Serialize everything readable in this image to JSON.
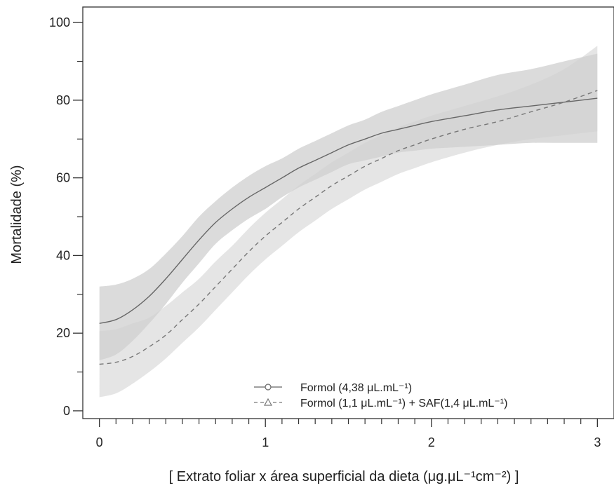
{
  "chart_data": {
    "type": "line",
    "xlabel": "[ Extrato foliar x área superficial da dieta (μg.μL⁻¹cm⁻²) ]",
    "ylabel": "Mortalidade (%)",
    "xlim": [
      -0.1,
      3.1
    ],
    "ylim": [
      -2,
      104
    ],
    "x_ticks": [
      0,
      1,
      2,
      3
    ],
    "y_ticks": [
      0,
      20,
      40,
      60,
      80,
      100
    ],
    "x_minor_ticks": [
      0.1,
      0.2,
      0.3,
      0.4,
      0.5,
      0.6,
      0.7,
      0.8,
      0.9,
      1.1,
      1.2,
      1.3,
      1.4,
      1.5,
      1.6,
      1.7,
      1.8,
      1.9,
      2.1,
      2.2,
      2.3,
      2.4,
      2.5,
      2.6,
      2.7,
      2.8,
      2.9
    ],
    "y_minor_ticks": [
      10,
      30,
      50,
      70,
      90
    ],
    "grid": false,
    "legend_position": "bottom-right",
    "series": [
      {
        "name": "Formol (4,38 μL.mL⁻¹)",
        "marker": "circle",
        "line_style": "solid",
        "color": "#666666",
        "band_color": "#bdbdbd",
        "x": [
          0,
          0.1,
          0.2,
          0.3,
          0.4,
          0.5,
          0.6,
          0.7,
          0.8,
          0.9,
          1.0,
          1.1,
          1.2,
          1.3,
          1.4,
          1.5,
          1.6,
          1.7,
          1.8,
          1.9,
          2.0,
          2.2,
          2.4,
          2.6,
          2.8,
          3.0
        ],
        "y": [
          22.5,
          23.5,
          26,
          29.5,
          34,
          39,
          44,
          48.5,
          52,
          55,
          57.5,
          60,
          62.5,
          64.5,
          66.5,
          68.5,
          70,
          71.5,
          72.5,
          73.5,
          74.5,
          76,
          77.5,
          78.5,
          79.5,
          80.5
        ],
        "lower": [
          13,
          14.5,
          18,
          22.5,
          27.5,
          33,
          38,
          43,
          46.5,
          49.5,
          52,
          55,
          57.5,
          59.5,
          61.5,
          63.5,
          64.5,
          65.5,
          66.5,
          67,
          67.5,
          68,
          68.5,
          69,
          69,
          69
        ],
        "upper": [
          32,
          32.5,
          34,
          36.5,
          40.5,
          45,
          50,
          54,
          57.5,
          60.5,
          63,
          65,
          67.5,
          69.5,
          71.5,
          73.5,
          75,
          77,
          78.5,
          80,
          81.5,
          84,
          86.5,
          88,
          90,
          92
        ]
      },
      {
        "name": "Formol (1,1 μL.mL⁻¹) + SAF(1,4 μL.mL⁻¹)",
        "marker": "triangle",
        "line_style": "dashed",
        "color": "#777777",
        "band_color": "#cfcfcf",
        "x": [
          0,
          0.1,
          0.2,
          0.3,
          0.4,
          0.5,
          0.6,
          0.7,
          0.8,
          0.9,
          1.0,
          1.1,
          1.2,
          1.3,
          1.4,
          1.5,
          1.6,
          1.7,
          1.8,
          1.9,
          2.0,
          2.2,
          2.4,
          2.6,
          2.8,
          3.0
        ],
        "y": [
          12,
          12.5,
          14,
          16.5,
          19.5,
          23.5,
          27.5,
          32,
          36.5,
          41,
          45,
          48.5,
          52,
          55,
          58,
          60.5,
          63,
          65,
          67,
          68.5,
          70,
          72.5,
          74.5,
          77,
          79.5,
          82.5
        ],
        "lower": [
          3.5,
          4.5,
          7,
          10,
          13.5,
          17.5,
          21.5,
          26,
          30.5,
          35,
          39,
          42.5,
          46,
          49,
          52,
          54.5,
          57,
          59,
          61,
          62.5,
          64,
          66.5,
          68.5,
          70,
          71,
          72
        ],
        "upper": [
          20.5,
          21,
          22.5,
          24,
          27,
          30.5,
          34,
          38.5,
          42.5,
          47,
          51,
          54.5,
          58,
          61,
          64,
          66.5,
          69,
          71,
          73,
          74.5,
          76,
          78.5,
          81,
          84,
          88,
          94
        ]
      }
    ]
  }
}
